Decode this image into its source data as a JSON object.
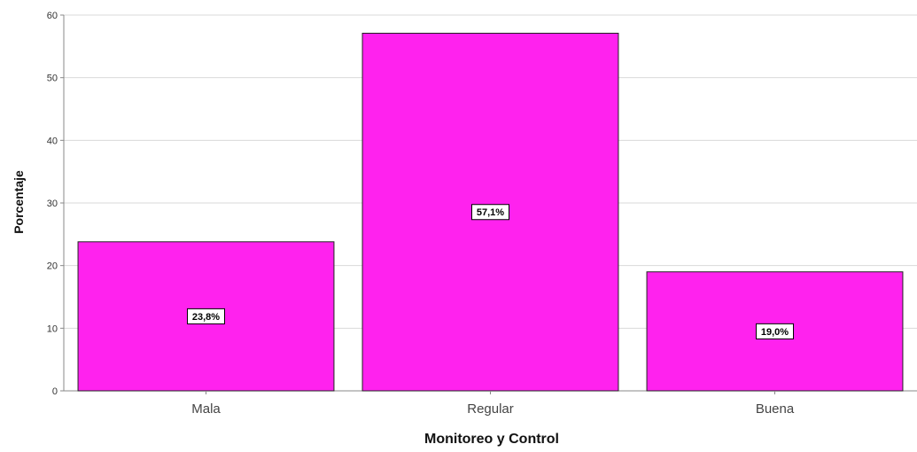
{
  "chart_data": {
    "type": "bar",
    "categories": [
      "Mala",
      "Regular",
      "Buena"
    ],
    "values": [
      23.8,
      57.1,
      19.0
    ],
    "data_labels": [
      "23,8%",
      "57,1%",
      "19,0%"
    ],
    "title": "",
    "xlabel": "Monitoreo y Control",
    "ylabel": "Porcentaje",
    "ylim": [
      0,
      60
    ],
    "yticks": [
      "0",
      "10",
      "20",
      "30",
      "40",
      "50",
      "60"
    ],
    "grid": true,
    "legend": "none",
    "colors": {
      "bar": "#ff22ee",
      "bar_edge": "#222222",
      "grid": "#d9d9d9",
      "axis": "#888888"
    }
  }
}
